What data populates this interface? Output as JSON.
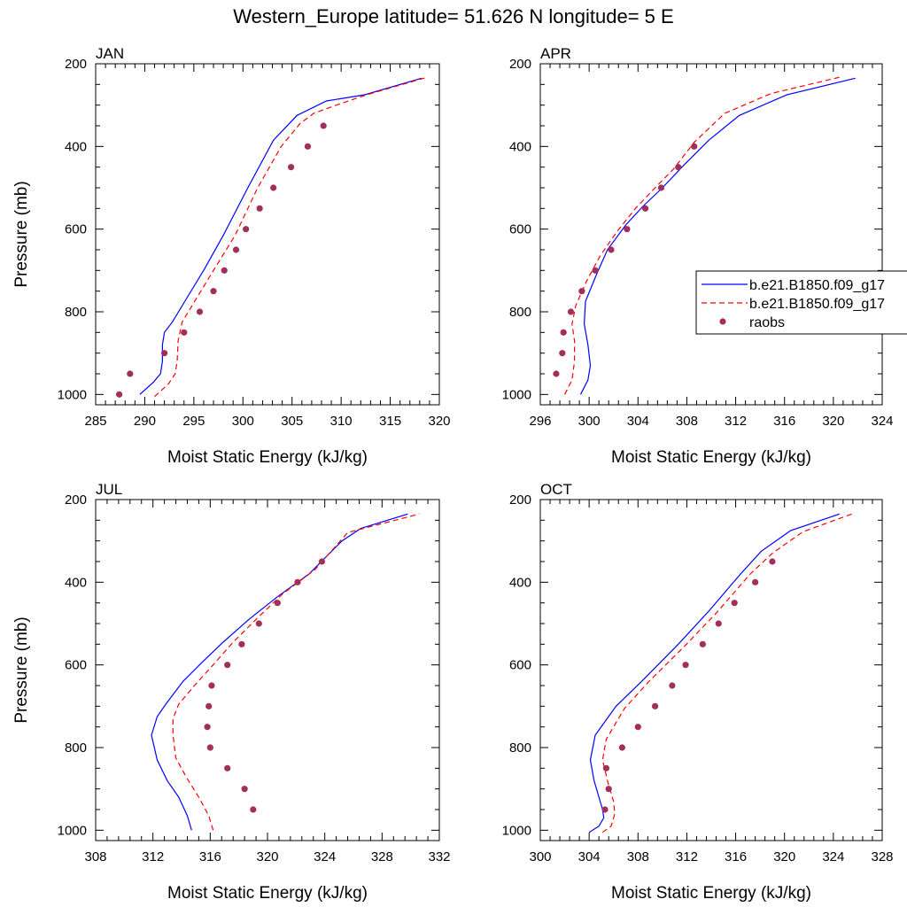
{
  "figure": {
    "title": "Western_Europe  latitude= 51.626 N longitude= 5 E"
  },
  "colors": {
    "model_1": "#0000ff",
    "model_2": "#ff0000",
    "raobs": "#a0305a"
  },
  "legend": {
    "entries": [
      {
        "label": "b.e21.B1850.f09_g17",
        "style": "solid",
        "color": "#0000ff"
      },
      {
        "label": "b.e21.B1850.f09_g17",
        "style": "dashed",
        "color": "#ff0000"
      },
      {
        "label": "raobs",
        "style": "dot",
        "color": "#a0305a"
      }
    ]
  },
  "chart_data": [
    {
      "type": "line",
      "panel": "JAN",
      "title": "JAN",
      "xlabel": "Moist Static Energy (kJ/kg)",
      "ylabel": "Pressure (mb)",
      "xlim": [
        285,
        320
      ],
      "xticks": [
        285,
        290,
        295,
        300,
        305,
        310,
        315,
        320
      ],
      "ylim": [
        1025,
        200
      ],
      "yticks": [
        200,
        400,
        600,
        800,
        1000
      ],
      "grid": false,
      "series": [
        {
          "style": "solid",
          "color": "#0000ff",
          "points": [
            [
              289.5,
              1000
            ],
            [
              290.9,
              970
            ],
            [
              291.6,
              950
            ],
            [
              291.8,
              920
            ],
            [
              291.8,
              880
            ],
            [
              292.0,
              850
            ],
            [
              292.8,
              825
            ],
            [
              294.2,
              770
            ],
            [
              296.0,
              700
            ],
            [
              298.0,
              615
            ],
            [
              300.5,
              500
            ],
            [
              303.1,
              385
            ],
            [
              305.5,
              325
            ],
            [
              308.5,
              290
            ],
            [
              312.4,
              275
            ],
            [
              318.2,
              235
            ]
          ]
        },
        {
          "style": "dashed",
          "color": "#ff0000",
          "points": [
            [
              291.0,
              1005
            ],
            [
              292.4,
              975
            ],
            [
              293.1,
              950
            ],
            [
              293.3,
              920
            ],
            [
              293.4,
              870
            ],
            [
              293.8,
              825
            ],
            [
              295.2,
              770
            ],
            [
              297.0,
              700
            ],
            [
              299.2,
              615
            ],
            [
              301.5,
              500
            ],
            [
              303.9,
              400
            ],
            [
              305.8,
              345
            ],
            [
              307.2,
              320
            ],
            [
              309.5,
              300
            ],
            [
              312.6,
              275
            ],
            [
              318.7,
              233
            ]
          ]
        }
      ],
      "points": [
        {
          "name": "raobs",
          "color": "#a0305a",
          "points": [
            [
              287.4,
              1000
            ],
            [
              288.5,
              950
            ],
            [
              292.0,
              900
            ],
            [
              294.0,
              850
            ],
            [
              295.6,
              800
            ],
            [
              297.0,
              750
            ],
            [
              298.1,
              700
            ],
            [
              299.3,
              650
            ],
            [
              300.3,
              600
            ],
            [
              301.7,
              550
            ],
            [
              303.1,
              500
            ],
            [
              304.9,
              450
            ],
            [
              306.6,
              400
            ],
            [
              308.2,
              350
            ]
          ]
        }
      ]
    },
    {
      "type": "line",
      "panel": "APR",
      "title": "APR",
      "xlabel": "Moist Static Energy (kJ/kg)",
      "ylabel": "",
      "xlim": [
        296,
        324
      ],
      "xticks": [
        296,
        300,
        304,
        308,
        312,
        316,
        320,
        324
      ],
      "ylim": [
        1025,
        200
      ],
      "yticks": [
        200,
        400,
        600,
        800,
        1000
      ],
      "grid": false,
      "series": [
        {
          "style": "solid",
          "color": "#0000ff",
          "points": [
            [
              299.3,
              1000
            ],
            [
              299.9,
              965
            ],
            [
              300.1,
              930
            ],
            [
              299.9,
              880
            ],
            [
              299.6,
              830
            ],
            [
              299.7,
              775
            ],
            [
              300.6,
              710
            ],
            [
              301.5,
              650
            ],
            [
              303.0,
              590
            ],
            [
              304.4,
              545
            ],
            [
              306.0,
              500
            ],
            [
              307.6,
              450
            ],
            [
              309.8,
              385
            ],
            [
              312.3,
              325
            ],
            [
              316.2,
              275
            ],
            [
              321.8,
              235
            ]
          ]
        },
        {
          "style": "dashed",
          "color": "#ff0000",
          "points": [
            [
              298.0,
              1000
            ],
            [
              298.6,
              965
            ],
            [
              298.8,
              920
            ],
            [
              298.8,
              870
            ],
            [
              298.6,
              830
            ],
            [
              298.9,
              785
            ],
            [
              299.8,
              725
            ],
            [
              300.9,
              665
            ],
            [
              302.3,
              605
            ],
            [
              303.8,
              550
            ],
            [
              305.4,
              500
            ],
            [
              306.9,
              455
            ],
            [
              308.6,
              390
            ],
            [
              311.1,
              320
            ],
            [
              314.9,
              272
            ],
            [
              320.6,
              232
            ]
          ]
        }
      ],
      "points": [
        {
          "name": "raobs",
          "color": "#a0305a",
          "points": [
            [
              297.3,
              950
            ],
            [
              297.8,
              900
            ],
            [
              297.9,
              850
            ],
            [
              298.5,
              800
            ],
            [
              299.4,
              750
            ],
            [
              300.5,
              700
            ],
            [
              301.8,
              650
            ],
            [
              303.1,
              600
            ],
            [
              304.6,
              550
            ],
            [
              305.9,
              500
            ],
            [
              307.3,
              450
            ],
            [
              308.6,
              400
            ]
          ]
        }
      ]
    },
    {
      "type": "line",
      "panel": "JUL",
      "title": "JUL",
      "xlabel": "Moist Static Energy (kJ/kg)",
      "ylabel": "Pressure (mb)",
      "xlim": [
        308,
        332
      ],
      "xticks": [
        308,
        312,
        316,
        320,
        324,
        328,
        332
      ],
      "ylim": [
        1025,
        200
      ],
      "yticks": [
        200,
        400,
        600,
        800,
        1000
      ],
      "grid": false,
      "series": [
        {
          "style": "solid",
          "color": "#0000ff",
          "points": [
            [
              314.7,
              1000
            ],
            [
              314.4,
              965
            ],
            [
              313.8,
              920
            ],
            [
              313.0,
              880
            ],
            [
              312.3,
              830
            ],
            [
              311.9,
              770
            ],
            [
              312.3,
              725
            ],
            [
              312.9,
              695
            ],
            [
              314.1,
              640
            ],
            [
              315.4,
              595
            ],
            [
              316.9,
              545
            ],
            [
              318.7,
              490
            ],
            [
              320.7,
              435
            ],
            [
              322.9,
              380
            ],
            [
              325.2,
              300
            ],
            [
              326.5,
              270
            ],
            [
              329.8,
              235
            ]
          ]
        },
        {
          "style": "dashed",
          "color": "#ff0000",
          "points": [
            [
              316.2,
              1000
            ],
            [
              315.9,
              965
            ],
            [
              315.2,
              920
            ],
            [
              314.3,
              870
            ],
            [
              313.6,
              825
            ],
            [
              313.4,
              770
            ],
            [
              313.4,
              730
            ],
            [
              313.8,
              695
            ],
            [
              314.9,
              650
            ],
            [
              316.2,
              600
            ],
            [
              317.6,
              545
            ],
            [
              319.2,
              490
            ],
            [
              321.0,
              430
            ],
            [
              323.3,
              370
            ],
            [
              325.6,
              280
            ],
            [
              326.9,
              268
            ],
            [
              330.6,
              235
            ]
          ]
        }
      ],
      "points": [
        {
          "name": "raobs",
          "color": "#a0305a",
          "points": [
            [
              319.0,
              950
            ],
            [
              318.4,
              900
            ],
            [
              317.2,
              850
            ],
            [
              316.0,
              800
            ],
            [
              315.8,
              750
            ],
            [
              315.9,
              700
            ],
            [
              316.1,
              650
            ],
            [
              317.2,
              600
            ],
            [
              318.2,
              550
            ],
            [
              319.4,
              500
            ],
            [
              320.7,
              450
            ],
            [
              322.1,
              400
            ],
            [
              323.8,
              350
            ]
          ]
        }
      ]
    },
    {
      "type": "line",
      "panel": "OCT",
      "title": "OCT",
      "xlabel": "Moist Static Energy (kJ/kg)",
      "ylabel": "",
      "xlim": [
        300,
        328
      ],
      "xticks": [
        300,
        304,
        308,
        312,
        316,
        320,
        324,
        328
      ],
      "ylim": [
        1025,
        200
      ],
      "yticks": [
        200,
        400,
        600,
        800,
        1000
      ],
      "grid": false,
      "series": [
        {
          "style": "solid",
          "color": "#0000ff",
          "points": [
            [
              304.0,
              1005
            ],
            [
              304.8,
              990
            ],
            [
              305.2,
              970
            ],
            [
              305.1,
              950
            ],
            [
              304.8,
              920
            ],
            [
              304.4,
              880
            ],
            [
              304.1,
              830
            ],
            [
              304.5,
              770
            ],
            [
              306.2,
              700
            ],
            [
              308.3,
              640
            ],
            [
              311.3,
              550
            ],
            [
              313.8,
              470
            ],
            [
              316.4,
              380
            ],
            [
              318.1,
              325
            ],
            [
              320.5,
              275
            ],
            [
              324.5,
              235
            ]
          ]
        },
        {
          "style": "dashed",
          "color": "#ff0000",
          "points": [
            [
              305.1,
              1005
            ],
            [
              305.8,
              990
            ],
            [
              306.1,
              960
            ],
            [
              306.0,
              930
            ],
            [
              305.5,
              880
            ],
            [
              305.1,
              830
            ],
            [
              305.4,
              780
            ],
            [
              306.9,
              705
            ],
            [
              308.9,
              640
            ],
            [
              311.8,
              555
            ],
            [
              314.4,
              475
            ],
            [
              317.2,
              380
            ],
            [
              319.0,
              330
            ],
            [
              321.5,
              278
            ],
            [
              325.7,
              233
            ]
          ]
        }
      ],
      "points": [
        {
          "name": "raobs",
          "color": "#a0305a",
          "points": [
            [
              305.3,
              950
            ],
            [
              305.6,
              900
            ],
            [
              305.4,
              850
            ],
            [
              306.7,
              800
            ],
            [
              308.0,
              750
            ],
            [
              309.4,
              700
            ],
            [
              310.8,
              650
            ],
            [
              311.9,
              600
            ],
            [
              313.3,
              550
            ],
            [
              314.6,
              500
            ],
            [
              315.9,
              450
            ],
            [
              317.6,
              400
            ],
            [
              319.0,
              350
            ]
          ]
        }
      ]
    }
  ]
}
